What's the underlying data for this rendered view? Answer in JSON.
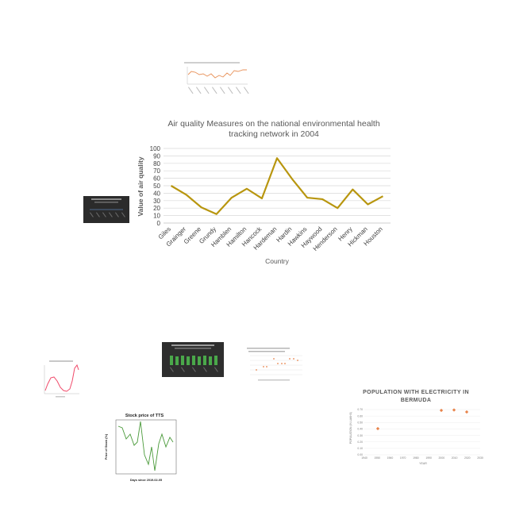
{
  "chart_data": {
    "type": "line",
    "title": "Air quality Measures on the national environmental health tracking network in 2004",
    "xlabel": "Country",
    "ylabel": "Value of air quality",
    "ylim": [
      0,
      100
    ],
    "yticks": [
      0,
      10,
      20,
      30,
      40,
      50,
      60,
      70,
      80,
      90,
      100
    ],
    "grid": true,
    "categories": [
      "Giles",
      "Grainger",
      "Greene",
      "Grundy",
      "Hamblen",
      "Hamilton",
      "Hancock",
      "Hardeman",
      "Hardin",
      "Hawkins",
      "Haywood",
      "Henderson",
      "Henry",
      "Hickman",
      "Houston"
    ],
    "series": [
      {
        "values": [
          50,
          38,
          21,
          12,
          34,
          46,
          33,
          87,
          59,
          34,
          32,
          20,
          45,
          25,
          36
        ]
      }
    ],
    "colors": {
      "line": "#b8960f",
      "grid": "#d9d9d9",
      "axis_text": "#404040",
      "title": "#595959"
    }
  },
  "thumbnails": {
    "population": {
      "title_line1": "POPULATION WITH ELECTRICITY IN",
      "title_line2": "BERMUDA",
      "ylabel": "POPULATION (IN LAKHS)",
      "xlabel": "YEAR",
      "yticks": [
        "0.70",
        "0.60",
        "0.50",
        "0.40",
        "0.30",
        "0.20",
        "0.10",
        "0.00"
      ],
      "xticks": [
        "1940",
        "1950",
        "1960",
        "1970",
        "1980",
        "1990",
        "2000",
        "2010",
        "2020",
        "2030"
      ]
    },
    "stock": {
      "title": "Stock price of TTS",
      "ylabel": "Price of Stock (%)",
      "xlabel": "Days since 2019-02-05"
    }
  }
}
